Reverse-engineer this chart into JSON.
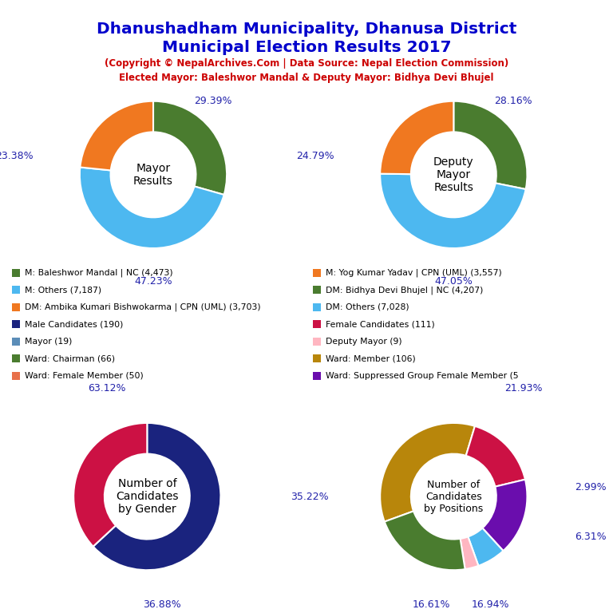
{
  "title_line1": "Dhanushadham Municipality, Dhanusa District",
  "title_line2": "Municipal Election Results 2017",
  "subtitle1": "(Copyright © NepalArchives.Com | Data Source: Nepal Election Commission)",
  "subtitle2": "Elected Mayor: Baleshwor Mandal & Deputy Mayor: Bidhya Devi Bhujel",
  "title_color": "#0000cc",
  "subtitle_color": "#cc0000",
  "pct_label_color": "#2222aa",
  "mayor": {
    "values": [
      29.39,
      23.38,
      47.23
    ],
    "colors": [
      "#4a7c2f",
      "#f07820",
      "#4db8f0"
    ],
    "center_text": "Mayor\nResults",
    "startangle": 90
  },
  "deputy": {
    "values": [
      28.16,
      24.79,
      47.05
    ],
    "colors": [
      "#4a7c2f",
      "#f07820",
      "#4db8f0"
    ],
    "center_text": "Deputy\nMayor\nResults",
    "startangle": 90
  },
  "gender": {
    "values": [
      63.12,
      36.88
    ],
    "colors": [
      "#1a237e",
      "#cc1144"
    ],
    "center_text": "Number of\nCandidates\nby Gender",
    "startangle": 90
  },
  "positions": {
    "values": [
      35.22,
      16.61,
      16.94,
      6.31,
      2.99,
      21.93
    ],
    "colors": [
      "#b8860b",
      "#cc1144",
      "#6a0dad",
      "#4db8f0",
      "#ffb6c1",
      "#4a7c2f"
    ],
    "center_text": "Number of\nCandidates\nby Positions",
    "startangle": 90
  },
  "legend_left": [
    {
      "label": "M: Baleshwor Mandal | NC (4,473)",
      "color": "#4a7c2f"
    },
    {
      "label": "M: Others (7,187)",
      "color": "#4db8f0"
    },
    {
      "label": "DM: Ambika Kumari Bishwokarma | CPN (UML) (3,703)",
      "color": "#f07820"
    },
    {
      "label": "Male Candidates (190)",
      "color": "#1a237e"
    },
    {
      "label": "Mayor (19)",
      "color": "#5b8db8"
    },
    {
      "label": "Ward: Chairman (66)",
      "color": "#4a7c2f"
    },
    {
      "label": "Ward: Female Member (50)",
      "color": "#e8704a"
    }
  ],
  "legend_right": [
    {
      "label": "M: Yog Kumar Yadav | CPN (UML) (3,557)",
      "color": "#f07820"
    },
    {
      "label": "DM: Bidhya Devi Bhujel | NC (4,207)",
      "color": "#4a7c2f"
    },
    {
      "label": "DM: Others (7,028)",
      "color": "#4db8f0"
    },
    {
      "label": "Female Candidates (111)",
      "color": "#cc1144"
    },
    {
      "label": "Deputy Mayor (9)",
      "color": "#ffb6c1"
    },
    {
      "label": "Ward: Member (106)",
      "color": "#b8860b"
    },
    {
      "label": "Ward: Suppressed Group Female Member (5",
      "color": "#6a0dad"
    }
  ],
  "background_color": "#ffffff"
}
